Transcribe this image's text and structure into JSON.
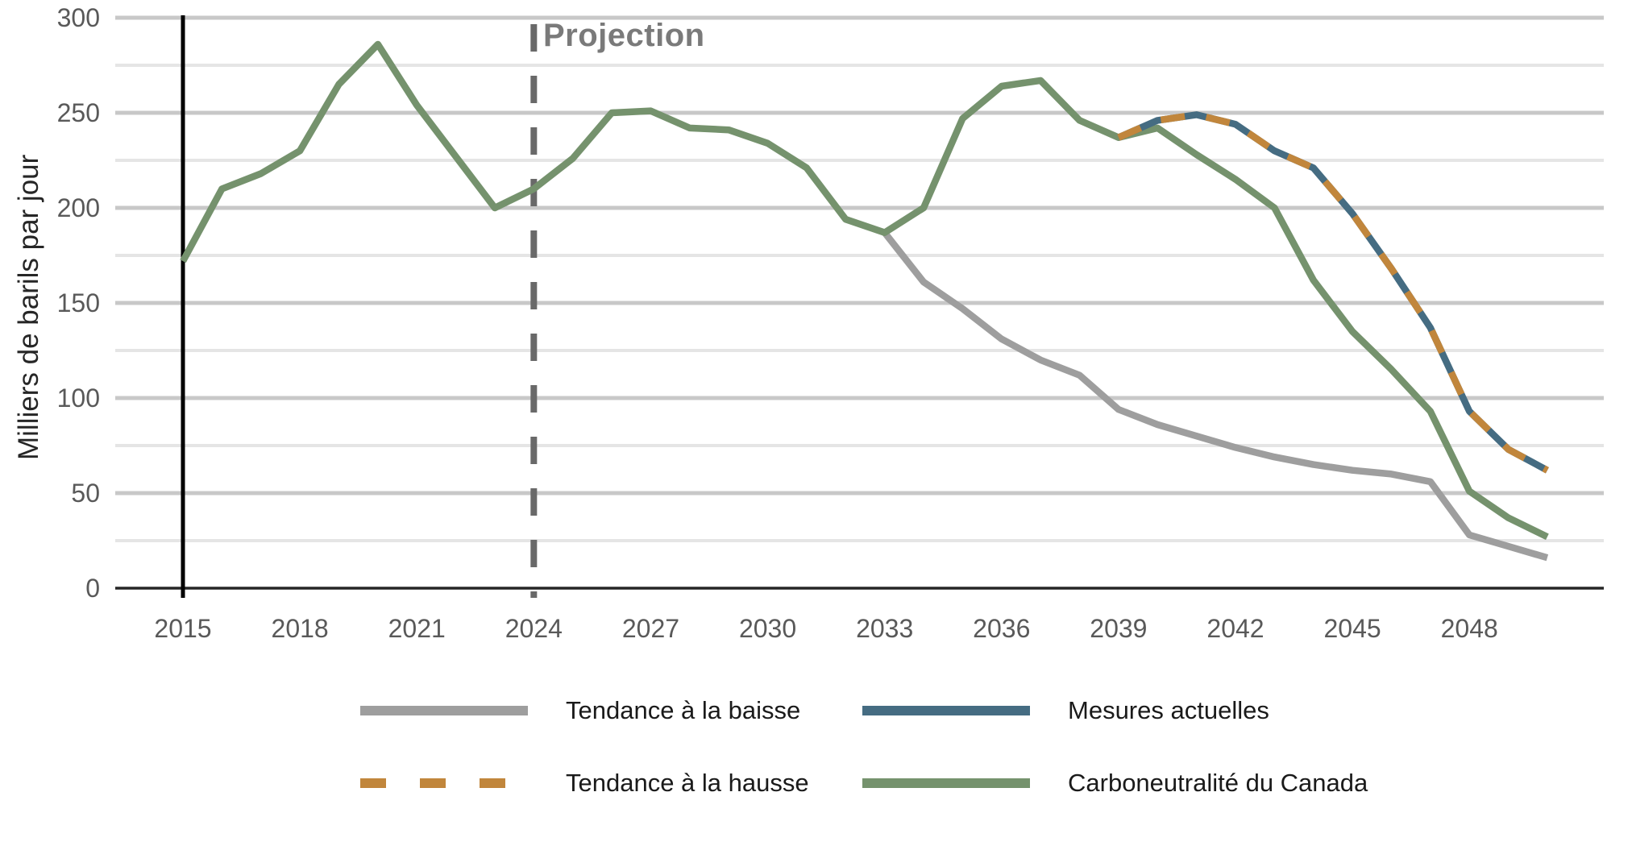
{
  "chart_data": {
    "type": "line",
    "title": "",
    "xlabel": "",
    "ylabel": "Milliers de barils par jour",
    "ylim": [
      0,
      300
    ],
    "xlim": [
      2015,
      2050
    ],
    "grid": "horizontal",
    "y_major_ticks": [
      0,
      50,
      100,
      150,
      200,
      250,
      300
    ],
    "y_minor_gridlines": [
      25,
      75,
      125,
      175,
      225,
      275
    ],
    "x_ticks": [
      2015,
      2018,
      2021,
      2024,
      2027,
      2030,
      2033,
      2036,
      2039,
      2042,
      2045,
      2048
    ],
    "annotation": {
      "label": "Projection",
      "x": 2024
    },
    "history_marker_x": 2015,
    "legend_position": "bottom",
    "series": [
      {
        "name": "Tendance à la baisse",
        "color": "#9e9e9e",
        "style": "solid",
        "start_year": 2033,
        "values": [
          187,
          161,
          147,
          131,
          120,
          112,
          94,
          86,
          80,
          74,
          69,
          65,
          62,
          60,
          56,
          28,
          22,
          16
        ]
      },
      {
        "name": "Tendance à la hausse",
        "color": "#c1863c",
        "style": "dashed",
        "start_year": 2039,
        "values": [
          237,
          246,
          249,
          244,
          230,
          221,
          197,
          168,
          137,
          93,
          73,
          62
        ]
      },
      {
        "name": "Mesures actuelles",
        "color": "#456c82",
        "style": "solid",
        "start_year": 2039,
        "values": [
          237,
          246,
          249,
          244,
          230,
          221,
          197,
          168,
          137,
          93,
          73,
          62
        ]
      },
      {
        "name": "Carboneutralité du Canada",
        "color": "#75926d",
        "style": "solid",
        "start_year": 2015,
        "values": [
          172,
          210,
          218,
          230,
          265,
          286,
          254,
          227,
          200,
          210,
          226,
          250,
          251,
          242,
          241,
          234,
          221,
          194,
          187,
          200,
          247,
          264,
          267,
          246,
          237,
          242,
          228,
          215,
          200,
          162,
          135,
          115,
          93,
          51,
          37,
          27
        ]
      }
    ],
    "colors": {
      "major_gridline": "#c8c8c8",
      "minor_gridline": "#e5e5e5",
      "baseline": "#262626",
      "history_line": "#000000",
      "projection_line": "#696969",
      "tick_label": "#595959"
    }
  },
  "legend": {
    "items": [
      {
        "label": "Tendance à la baisse",
        "series_index": 0
      },
      {
        "label": "Mesures actuelles",
        "series_index": 2
      },
      {
        "label": "Tendance à la hausse",
        "series_index": 1
      },
      {
        "label": "Carboneutralité du Canada",
        "series_index": 3
      }
    ]
  }
}
